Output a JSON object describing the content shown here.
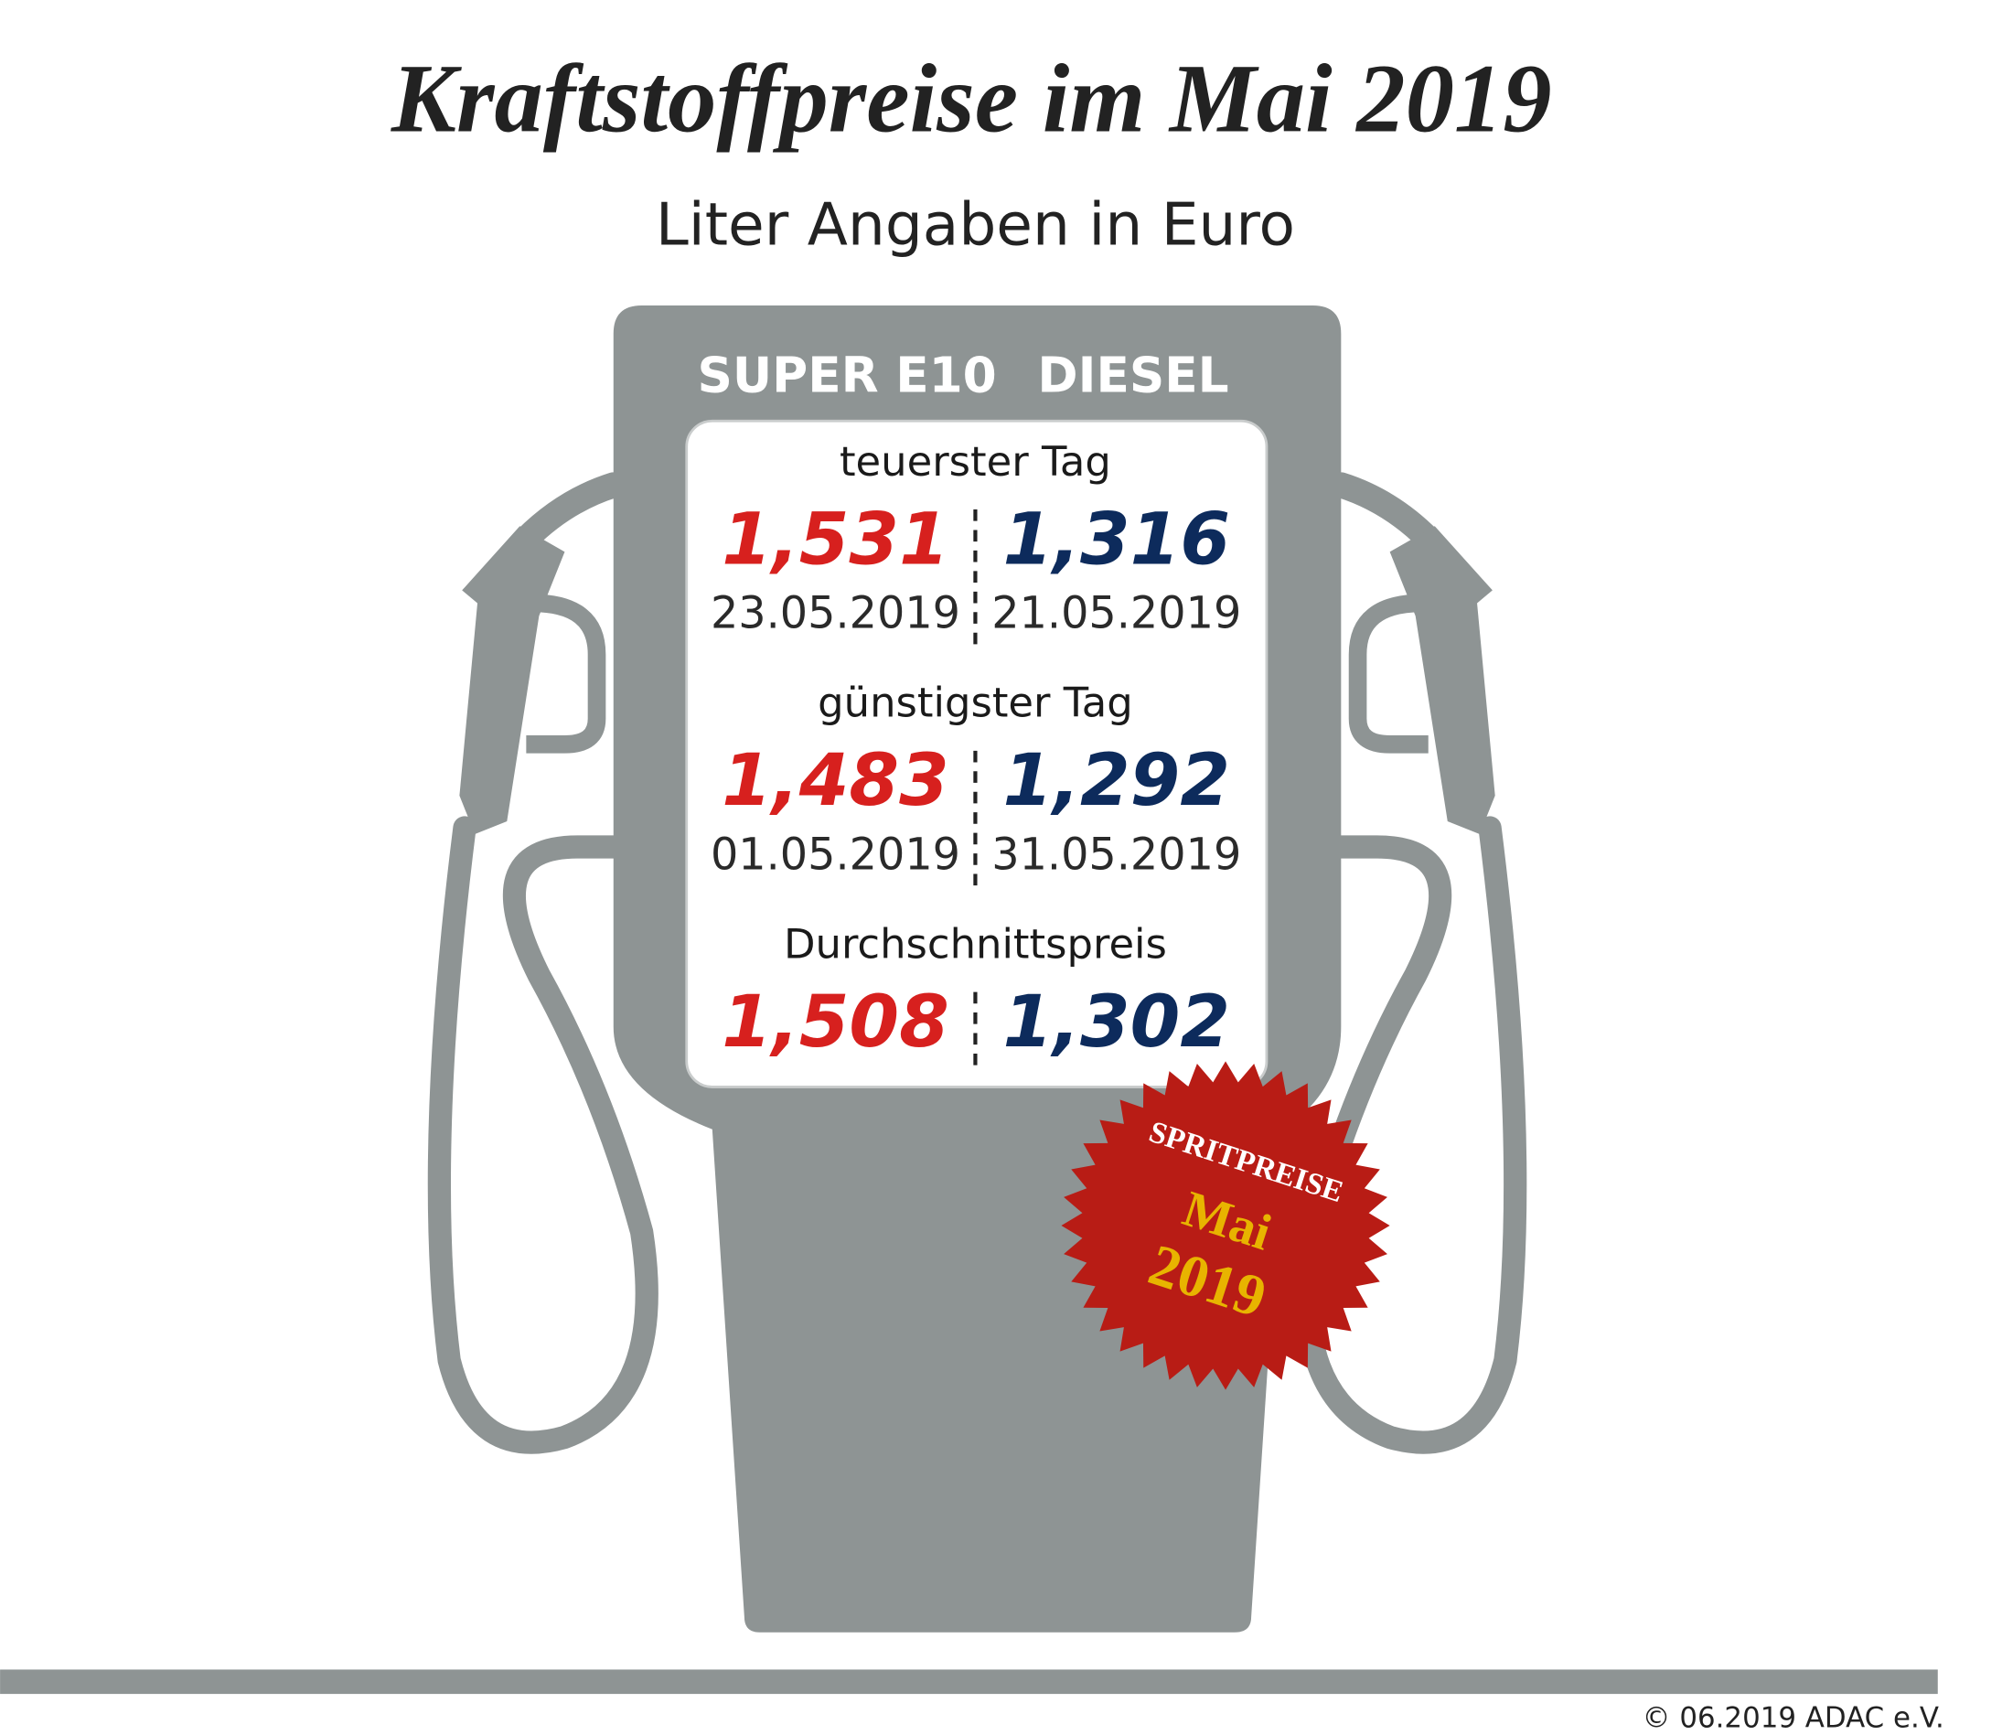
{
  "header": {
    "title": "Kraftstoffpreise im Mai 2019",
    "subtitle": "Liter Angaben in Euro"
  },
  "pump": {
    "columns": [
      "SUPER E10",
      "DIESEL"
    ],
    "sections": [
      {
        "label": "teuerster Tag",
        "prices": [
          "1,531",
          "1,316"
        ],
        "dates": [
          "23.05.2019",
          "21.05.2019"
        ]
      },
      {
        "label": "günstigster Tag",
        "prices": [
          "1,483",
          "1,292"
        ],
        "dates": [
          "01.05.2019",
          "31.05.2019"
        ]
      },
      {
        "label": "Durchschnittspreis",
        "prices": [
          "1,508",
          "1,302"
        ]
      }
    ]
  },
  "badge": {
    "lines": [
      "SPRITPREISE",
      "Mai",
      "2019"
    ]
  },
  "footer": {
    "copyright": "© 06.2019  ADAC e.V."
  }
}
